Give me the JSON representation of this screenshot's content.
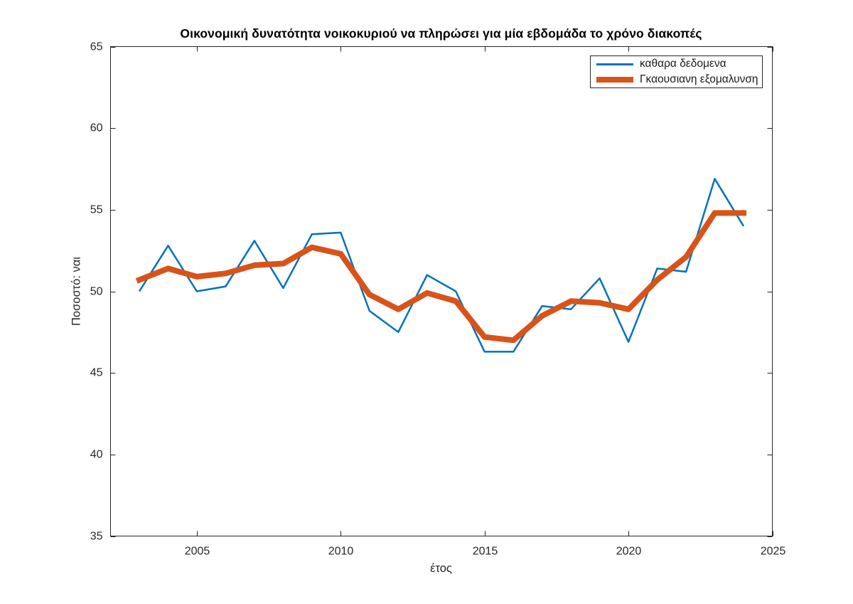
{
  "chart_data": {
    "type": "line",
    "title": "Οικονομική δυνατότητα νοικοκυριού να πληρώσει για μία εβδομάδα το χρόνο διακοπές",
    "xlabel": "έτος",
    "ylabel": "Ποσοστό: ναι",
    "xlim": [
      2002,
      2025
    ],
    "ylim": [
      35,
      65
    ],
    "xticks": [
      2005,
      2010,
      2015,
      2020,
      2025
    ],
    "yticks": [
      35,
      40,
      45,
      50,
      55,
      60,
      65
    ],
    "grid": false,
    "axis_color": "#262626",
    "tick_label_color": "#262626",
    "legend": {
      "position": "top-right",
      "border_color": "#262626",
      "background": "#ffffff"
    },
    "x": [
      2003,
      2004,
      2005,
      2006,
      2007,
      2008,
      2009,
      2010,
      2011,
      2012,
      2013,
      2014,
      2015,
      2016,
      2017,
      2018,
      2019,
      2020,
      2021,
      2022,
      2023,
      2024
    ],
    "series": [
      {
        "name": "καθαρα δεδομενα",
        "color": "#0072BD",
        "stroke_width": 2.5,
        "values": [
          50.0,
          52.8,
          50.0,
          50.3,
          53.1,
          50.2,
          53.5,
          53.6,
          48.8,
          47.5,
          51.0,
          50.0,
          46.3,
          46.3,
          49.1,
          48.9,
          50.8,
          46.9,
          51.4,
          51.2,
          56.9,
          54.0
        ]
      },
      {
        "name": "Γκαουσιανη εξομαλυνση",
        "color": "#D95319",
        "stroke_width": 8,
        "values": [
          50.7,
          51.4,
          50.9,
          51.1,
          51.6,
          51.7,
          52.7,
          52.3,
          49.8,
          48.9,
          49.9,
          49.4,
          47.2,
          47.0,
          48.5,
          49.4,
          49.3,
          48.9,
          50.7,
          52.1,
          54.8,
          54.8
        ]
      }
    ]
  }
}
